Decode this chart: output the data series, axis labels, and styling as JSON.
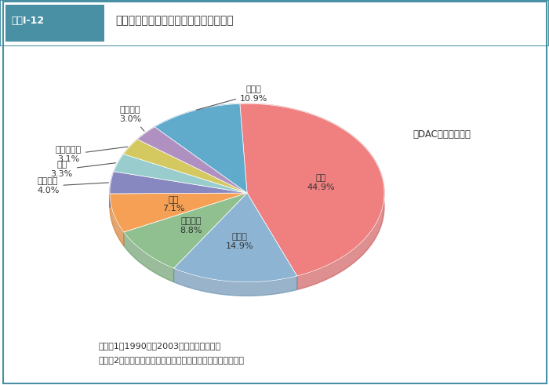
{
  "title": "図表Ⅰ-12　水・衛生分野に対する各ドナー国の貢献",
  "subtitle": "（DAC実績ベース）",
  "note_line1": "注：（1）1990年〜2003年（暦年）の実績",
  "note_line2": "　　（2）四捨五入の関係上、合計が一致しないことがある。",
  "labels": [
    "日本",
    "ドイツ",
    "フランス",
    "米国",
    "オランダ",
    "英国",
    "デンマーク",
    "イタリア",
    "その他"
  ],
  "values": [
    44.9,
    14.9,
    8.8,
    7.1,
    4.0,
    3.3,
    3.1,
    3.0,
    10.9
  ],
  "label_texts": [
    "日本\n44.9%",
    "ドイツ\n14.9%",
    "フランス\n8.8%",
    "米国\n7.1%",
    "オランダ\n4.0%",
    "英国\n3.3%",
    "デンマーク\n3.1%",
    "イタリア\n3.0%",
    "その他\n10.9%"
  ],
  "colors": [
    "#F08080",
    "#8EB4D4",
    "#90C090",
    "#F5A055",
    "#8888C0",
    "#99CCCC",
    "#D4C860",
    "#B090C0",
    "#60AACC"
  ],
  "shadow_colors": [
    "#D06060",
    "#6E94B4",
    "#70A070",
    "#D58035",
    "#6868A0",
    "#79ACAC",
    "#B4A840",
    "#9070A0",
    "#408AAC"
  ],
  "background_color": "#ffffff",
  "border_color": "#4A90A4",
  "title_bg_color": "#4A90A4",
  "title_text_color": "#ffffff",
  "fig_width": 7.0,
  "fig_height": 4.91
}
